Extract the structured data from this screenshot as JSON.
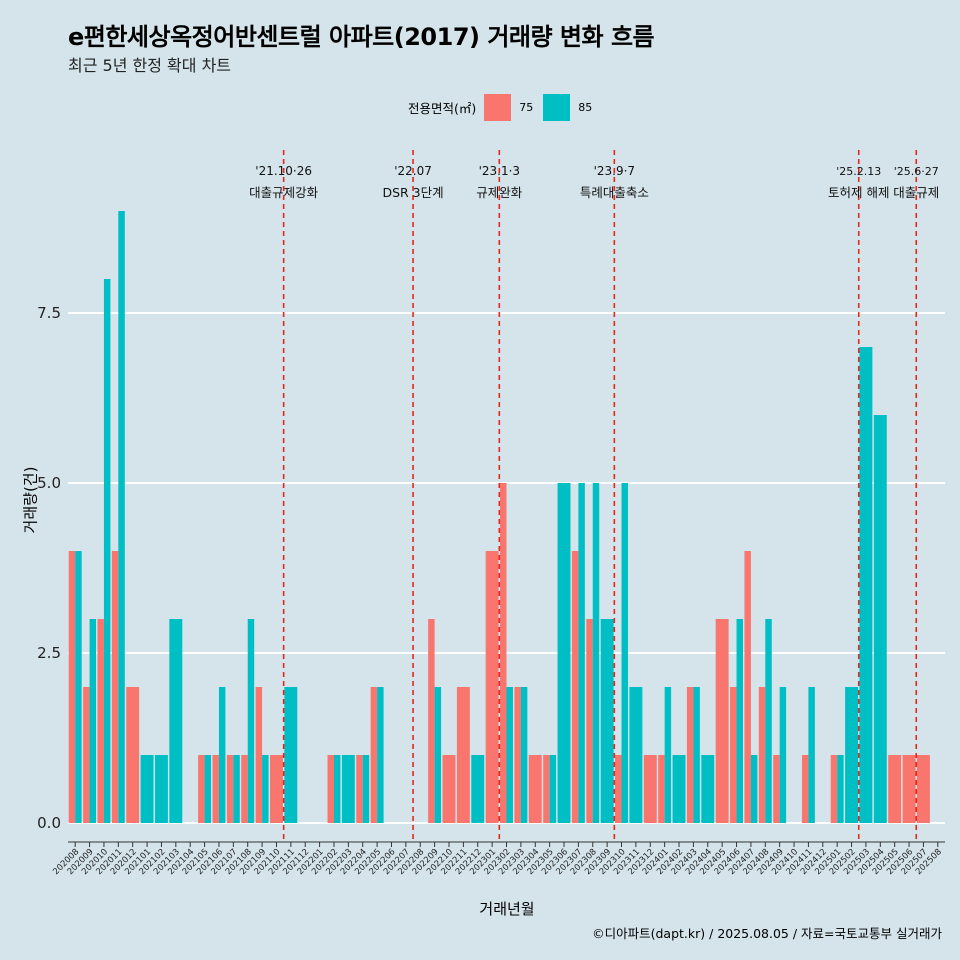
{
  "title": "e편한세상옥정어반센트럴 아파트(2017) 거래량 변화 흐름",
  "subtitle": "최근 5년 한정 확대 차트",
  "legend": {
    "title": "전용면적(㎡)",
    "items": [
      {
        "label": "75",
        "color": "#f8766d"
      },
      {
        "label": "85",
        "color": "#00bfc4"
      }
    ]
  },
  "caption": "©디아파트(dapt.kr) / 2025.08.05 / 자료=국토교통부 실거래가",
  "colors": {
    "background": "#d5e4eb",
    "grid": "#ffffff",
    "event_line": "#e8261e",
    "s75": "#f8766d",
    "s85": "#00bfc4"
  },
  "chart_data": {
    "type": "bar",
    "xlabel": "거래년월",
    "ylabel": "거래량(건)",
    "ylim": [
      -0.5,
      9.3
    ],
    "yticks": [
      0,
      2.5,
      5,
      7.5
    ],
    "ytick_labels": [
      "0.0",
      "2.5",
      "5.0",
      "7.5"
    ],
    "categories": [
      "202008",
      "202009",
      "202010",
      "202011",
      "202012",
      "202101",
      "202102",
      "202103",
      "202104",
      "202105",
      "202106",
      "202107",
      "202108",
      "202109",
      "202110",
      "202111",
      "202112",
      "202201",
      "202202",
      "202203",
      "202204",
      "202205",
      "202206",
      "202207",
      "202208",
      "202209",
      "202210",
      "202211",
      "202212",
      "202301",
      "202302",
      "202303",
      "202304",
      "202305",
      "202306",
      "202307",
      "202308",
      "202309",
      "202310",
      "202311",
      "202312",
      "202401",
      "202402",
      "202403",
      "202404",
      "202405",
      "202406",
      "202407",
      "202408",
      "202409",
      "202410",
      "202411",
      "202412",
      "202501",
      "202502",
      "202503",
      "202504",
      "202505",
      "202506",
      "202507",
      "202508"
    ],
    "series": [
      {
        "name": "75",
        "values": [
          4,
          2,
          3,
          4,
          2,
          0,
          0,
          0,
          0,
          1,
          1,
          1,
          1,
          2,
          1,
          0,
          0,
          0,
          1,
          0,
          1,
          2,
          0,
          0,
          0,
          3,
          1,
          2,
          0,
          4,
          5,
          2,
          1,
          1,
          0,
          4,
          3,
          0,
          1,
          0,
          1,
          1,
          0,
          2,
          0,
          3,
          2,
          4,
          2,
          1,
          0,
          1,
          0,
          1,
          0,
          0,
          0,
          1,
          1,
          1,
          0
        ]
      },
      {
        "name": "85",
        "values": [
          4,
          3,
          8,
          9,
          0,
          1,
          1,
          3,
          0,
          1,
          2,
          1,
          3,
          1,
          0,
          2,
          0,
          0,
          1,
          1,
          1,
          2,
          0,
          0,
          0,
          2,
          0,
          0,
          1,
          0,
          2,
          2,
          0,
          1,
          5,
          5,
          5,
          3,
          5,
          2,
          0,
          2,
          1,
          2,
          1,
          0,
          3,
          1,
          3,
          2,
          0,
          2,
          0,
          1,
          2,
          7,
          6,
          0,
          0,
          0,
          0
        ]
      }
    ],
    "events": [
      {
        "after": "202110",
        "date": "'21.10·26",
        "label": "대출규제강화"
      },
      {
        "after": "202207",
        "date": "'22.07",
        "label": "DSR 3단계"
      },
      {
        "after": "202301",
        "date": "'23.1·3",
        "label": "규제완화"
      },
      {
        "after": "202309",
        "date": "'23.9·7",
        "label": "특례대출축소"
      },
      {
        "after": "202502",
        "date": "'25.2.13",
        "label": "토허제 해제"
      },
      {
        "after": "202506",
        "date": "'25.6·27",
        "label": "대출규제"
      }
    ]
  }
}
